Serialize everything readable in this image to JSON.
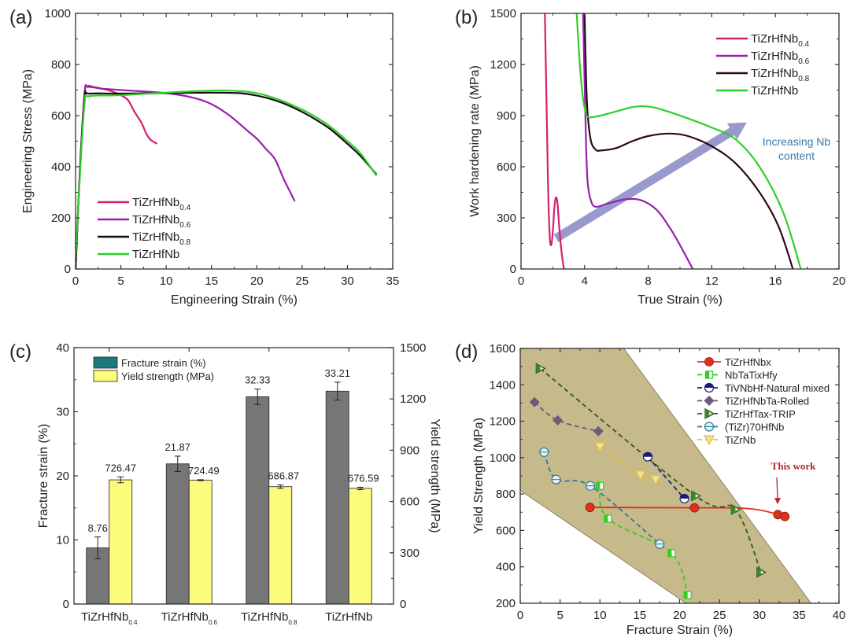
{
  "chart_data": [
    {
      "id": "a",
      "panel_label": "(a)",
      "type": "line",
      "title": "",
      "xlabel": "Engineering Strain (%)",
      "ylabel": "Engineering Stress (MPa)",
      "xlim": [
        0,
        35
      ],
      "ylim": [
        0,
        1000
      ],
      "xticks": [
        0,
        5,
        10,
        15,
        20,
        25,
        30,
        35
      ],
      "yticks": [
        0,
        200,
        400,
        600,
        800,
        1000
      ],
      "legend_position": "bottom-left",
      "series": [
        {
          "name": "TiZrHfNb",
          "sub": "0.4",
          "color": "#d4206e",
          "x": [
            0,
            0.5,
            1.0,
            1.3,
            2,
            3,
            4,
            5,
            5.8,
            6.5,
            7.3,
            7.8,
            8.3,
            9.0
          ],
          "y": [
            0,
            400,
            680,
            715,
            712,
            705,
            695,
            680,
            660,
            615,
            570,
            530,
            505,
            490
          ]
        },
        {
          "name": "TiZrHfNb",
          "sub": "0.6",
          "color": "#9a1fae",
          "x": [
            0,
            0.5,
            1.0,
            1.4,
            3,
            6,
            10,
            13,
            15,
            17,
            19,
            20,
            21,
            22,
            23,
            24.2
          ],
          "y": [
            0,
            400,
            690,
            712,
            705,
            698,
            688,
            670,
            645,
            600,
            540,
            510,
            470,
            430,
            350,
            265
          ]
        },
        {
          "name": "TiZrHfNb",
          "sub": "0.8",
          "color": "#1a0a14",
          "x": [
            0,
            0.5,
            1.0,
            1.5,
            5,
            10,
            15,
            18,
            20,
            22,
            24,
            26,
            28,
            30,
            31.5,
            33.2
          ],
          "y": [
            0,
            400,
            670,
            686,
            686,
            688,
            690,
            688,
            678,
            660,
            632,
            595,
            550,
            490,
            440,
            370
          ]
        },
        {
          "name": "TiZrHfNb",
          "sub": "",
          "color": "#2fcf2a",
          "x": [
            0,
            0.5,
            1.0,
            1.5,
            5,
            10,
            15,
            18,
            20,
            22,
            24,
            26,
            28,
            30,
            31.5,
            33.2
          ],
          "y": [
            40,
            380,
            650,
            676,
            680,
            690,
            698,
            696,
            688,
            668,
            640,
            605,
            560,
            500,
            450,
            365
          ]
        }
      ]
    },
    {
      "id": "b",
      "panel_label": "(b)",
      "type": "line",
      "title": "",
      "xlabel": "True Strain (%)",
      "ylabel": "Work hardening rate (MPa)",
      "xlim": [
        0,
        20
      ],
      "ylim": [
        0,
        1500
      ],
      "xticks": [
        0,
        4,
        8,
        12,
        16,
        20
      ],
      "yticks": [
        0,
        300,
        600,
        900,
        1200,
        1500
      ],
      "legend_position": "top-right",
      "annotation": {
        "text_lines": [
          "Increasing Nb",
          "content"
        ],
        "arrow_from": [
          2.2,
          180
        ],
        "arrow_to": [
          14.2,
          860
        ]
      },
      "series": [
        {
          "name": "TiZrHfNb",
          "sub": "0.4",
          "color": "#d4206e",
          "x": [
            1.5,
            1.6,
            1.7,
            1.8,
            1.9,
            2.0,
            2.1,
            2.2,
            2.3,
            2.4,
            2.55,
            2.7
          ],
          "y": [
            1500,
            1000,
            500,
            200,
            140,
            220,
            360,
            420,
            380,
            250,
            100,
            0
          ]
        },
        {
          "name": "TiZrHfNb",
          "sub": "0.6",
          "color": "#9a1fae",
          "x": [
            3.9,
            4.0,
            4.1,
            4.2,
            4.4,
            4.7,
            5.5,
            6.5,
            7.5,
            8.5,
            9.3,
            10.0,
            10.8
          ],
          "y": [
            1500,
            1100,
            700,
            500,
            400,
            365,
            385,
            408,
            405,
            350,
            250,
            140,
            0
          ]
        },
        {
          "name": "TiZrHfNb",
          "sub": "0.8",
          "color": "#2a0a1c",
          "x": [
            4.0,
            4.1,
            4.2,
            4.4,
            4.7,
            5.0,
            6.0,
            7.0,
            8.0,
            9.3,
            10.5,
            12.0,
            13.5,
            15.0,
            16.2,
            17.1
          ],
          "y": [
            1500,
            1100,
            900,
            750,
            700,
            695,
            710,
            750,
            780,
            795,
            780,
            720,
            620,
            450,
            250,
            0
          ]
        },
        {
          "name": "TiZrHfNb",
          "sub": "",
          "color": "#2fcf2a",
          "x": [
            3.5,
            3.7,
            3.9,
            4.1,
            4.3,
            5.0,
            6.0,
            7.0,
            7.7,
            8.5,
            10.0,
            12.0,
            13.5,
            15.0,
            16.5,
            17.6
          ],
          "y": [
            1500,
            1200,
            1000,
            910,
            890,
            900,
            925,
            950,
            955,
            945,
            900,
            830,
            760,
            600,
            330,
            0
          ]
        }
      ]
    },
    {
      "id": "c",
      "panel_label": "(c)",
      "type": "bar",
      "title": "",
      "xlabel": "",
      "ylabel": "Fracture strain (%)",
      "y2label": "Yield strength (MPa)",
      "ylim": [
        0,
        40
      ],
      "y2lim": [
        0,
        1500
      ],
      "yticks": [
        0,
        10,
        20,
        30,
        40
      ],
      "y2ticks": [
        0,
        300,
        600,
        900,
        1200,
        1500
      ],
      "categories": [
        {
          "name": "TiZrHfNb",
          "sub": "0.4"
        },
        {
          "name": "TiZrHfNb",
          "sub": "0.6"
        },
        {
          "name": "TiZrHfNb",
          "sub": "0.8"
        },
        {
          "name": "TiZrHfNb",
          "sub": ""
        }
      ],
      "legend_position": "top-left",
      "series": [
        {
          "name": "Fracture strain (%)",
          "axis": "left",
          "color": "#767676",
          "legend_color": "#1d7a7a",
          "values": [
            8.76,
            21.87,
            32.33,
            33.21
          ],
          "errors": [
            1.7,
            1.2,
            1.2,
            1.4
          ],
          "labels": [
            "8.76",
            "21.87",
            "32.33",
            "33.21"
          ]
        },
        {
          "name": "Yield strength (MPa)",
          "axis": "right",
          "color": "#fdfb7c",
          "legend_color": "#fdfb7c",
          "values": [
            726.47,
            724.49,
            686.87,
            676.59
          ],
          "errors": [
            17,
            3,
            10,
            7
          ],
          "labels": [
            "726.47",
            "724.49",
            "686.87",
            "676.59"
          ]
        }
      ]
    },
    {
      "id": "d",
      "panel_label": "(d)",
      "type": "scatter",
      "title": "",
      "xlabel": "Fracture Strain (%)",
      "ylabel": "Yield Strength (MPa)",
      "xlim": [
        0,
        40
      ],
      "ylim": [
        200,
        1600
      ],
      "xticks": [
        0,
        5,
        10,
        15,
        20,
        25,
        30,
        35,
        40
      ],
      "yticks": [
        200,
        400,
        600,
        800,
        1000,
        1200,
        1400,
        1600
      ],
      "legend_position": "top-right",
      "shaded_region": {
        "color": "#c6b98a",
        "polygon": [
          [
            0,
            1600
          ],
          [
            13,
            1600
          ],
          [
            36.5,
            200
          ],
          [
            20.8,
            200
          ],
          [
            0,
            820
          ]
        ]
      },
      "annotation": {
        "text": "This work",
        "arrow_to": [
          32.3,
          705
        ]
      },
      "series": [
        {
          "name": "TiZrHfNbx",
          "color": "#e0301c",
          "marker": "circle-filled",
          "line": "solid",
          "x": [
            8.76,
            21.87,
            32.33,
            33.21
          ],
          "y": [
            726.47,
            724.49,
            686.87,
            676.59
          ]
        },
        {
          "name": "NbTaTixHfy",
          "color": "#33cc22",
          "marker": "square-half",
          "line": "dashed",
          "x": [
            10.0,
            11.0,
            19.0,
            21.0
          ],
          "y": [
            845,
            665,
            475,
            245
          ]
        },
        {
          "name": "TiVNbHf-Natural mixed",
          "color": "#1a1a7a",
          "marker": "circle-half",
          "line": "dashed",
          "x": [
            16.0,
            20.6
          ],
          "y": [
            1005,
            775
          ]
        },
        {
          "name": "TiZrHfNbTa-Rolled",
          "color": "#6e5a78",
          "marker": "diamond",
          "line": "dashed",
          "x": [
            1.8,
            4.7,
            9.8
          ],
          "y": [
            1305,
            1205,
            1145
          ]
        },
        {
          "name": "TiZrHfTax-TRIP",
          "color": "#2e5a26",
          "marker": "triangle-right-half",
          "line": "dashed",
          "x": [
            2.5,
            22.0,
            27.0,
            30.2
          ],
          "y": [
            1490,
            790,
            715,
            370
          ]
        },
        {
          "name": "(TiZr)70HfNb",
          "color": "#2f7a9a",
          "marker": "circle-open-half",
          "line": "dashed",
          "x": [
            3.0,
            4.5,
            8.8,
            17.5
          ],
          "y": [
            1030,
            880,
            845,
            525
          ]
        },
        {
          "name": "TiZrNb",
          "color": "#e8c040",
          "marker": "triangle-down-half",
          "line": "dashed",
          "x": [
            10.0,
            15.1,
            17.0
          ],
          "y": [
            1060,
            905,
            880
          ]
        }
      ]
    }
  ]
}
